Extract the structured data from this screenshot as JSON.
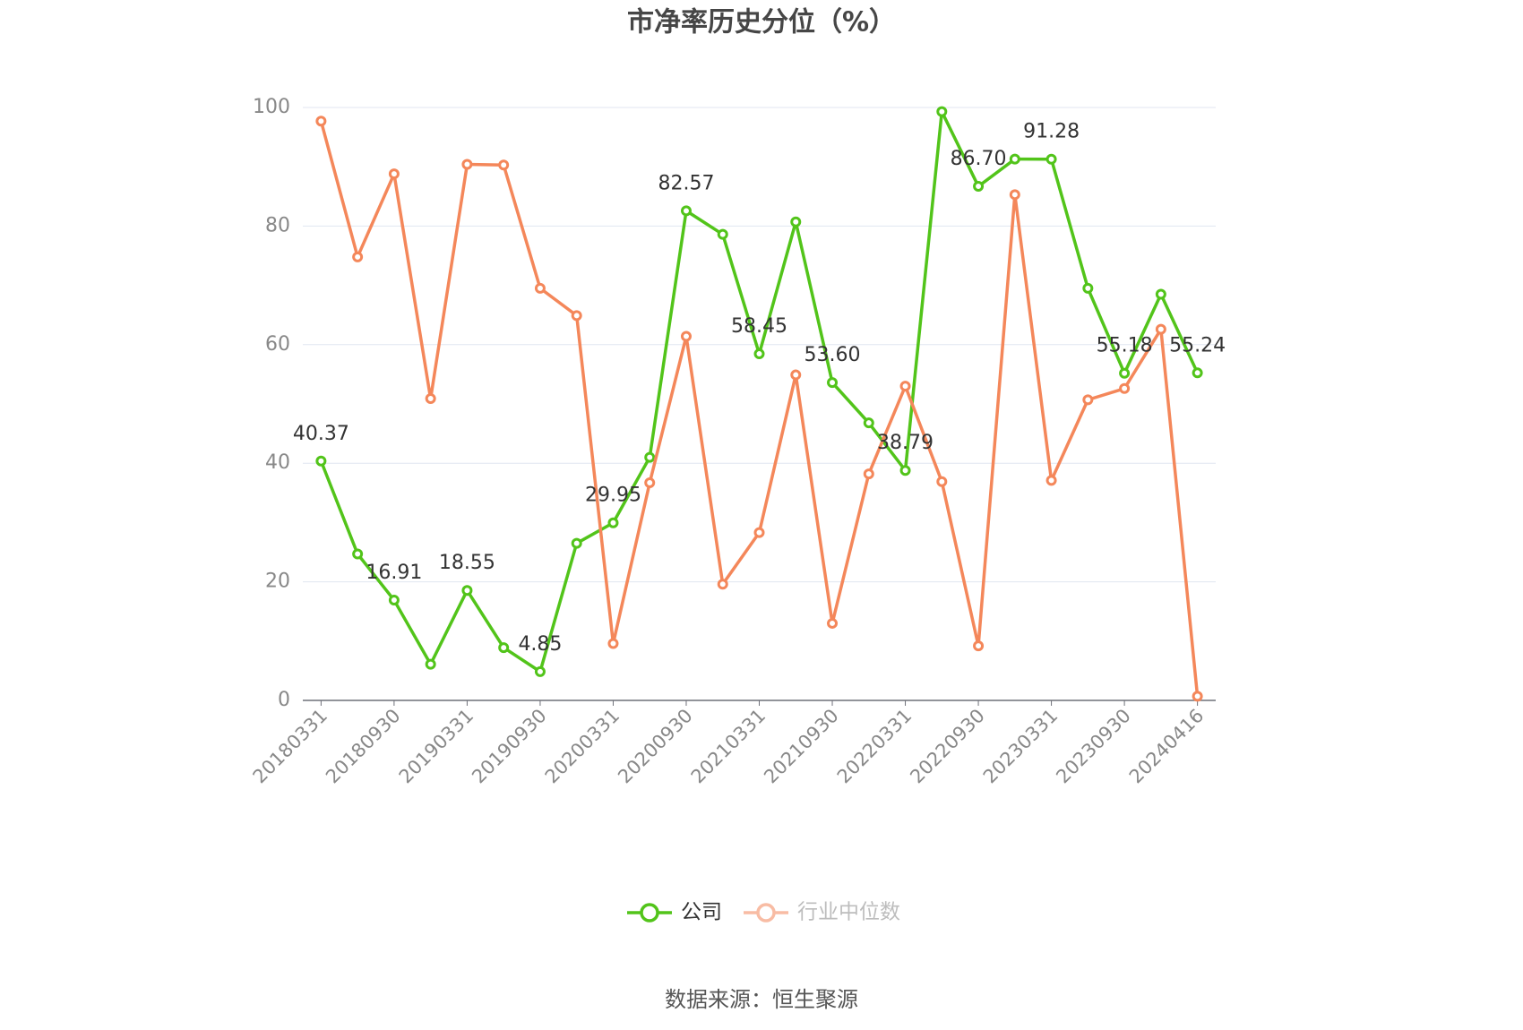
{
  "chart_data": {
    "type": "line",
    "title": "市净率历史分位（%）",
    "categories": [
      "20180331",
      null,
      "20180930",
      null,
      "20190331",
      null,
      "20190930",
      null,
      "20200331",
      null,
      "20200930",
      null,
      "20210331",
      null,
      "20210930",
      null,
      "20220331",
      null,
      "20220930",
      null,
      "20230331",
      null,
      "20230930",
      null,
      "20240416"
    ],
    "series": [
      {
        "name": "公司",
        "color": "#52c41a",
        "values": [
          40.37,
          24.7,
          16.91,
          6.1,
          18.55,
          8.9,
          4.85,
          26.5,
          29.95,
          41.0,
          82.57,
          78.6,
          58.45,
          80.7,
          53.6,
          46.8,
          38.79,
          99.3,
          86.7,
          91.3,
          91.28,
          69.5,
          55.18,
          68.5,
          55.24
        ],
        "value_labels": [
          "40.37",
          null,
          "16.91",
          null,
          "18.55",
          null,
          "4.85",
          null,
          "29.95",
          null,
          "82.57",
          null,
          "58.45",
          null,
          "53.60",
          null,
          "38.79",
          null,
          "86.70",
          null,
          "91.28",
          null,
          "55.18",
          null,
          "55.24"
        ]
      },
      {
        "name": "行业中位数",
        "color": "#f4875a",
        "values": [
          97.7,
          74.8,
          88.8,
          50.9,
          90.4,
          90.3,
          69.5,
          64.9,
          9.6,
          36.7,
          61.4,
          19.6,
          28.3,
          54.9,
          13.0,
          38.2,
          53.0,
          36.9,
          9.2,
          85.3,
          37.1,
          50.7,
          52.6,
          62.6,
          0.7
        ]
      }
    ],
    "ylim": [
      0,
      100
    ],
    "yticks": [
      0,
      20,
      40,
      60,
      80,
      100
    ],
    "grid": true,
    "source": "数据来源：恒生聚源"
  }
}
